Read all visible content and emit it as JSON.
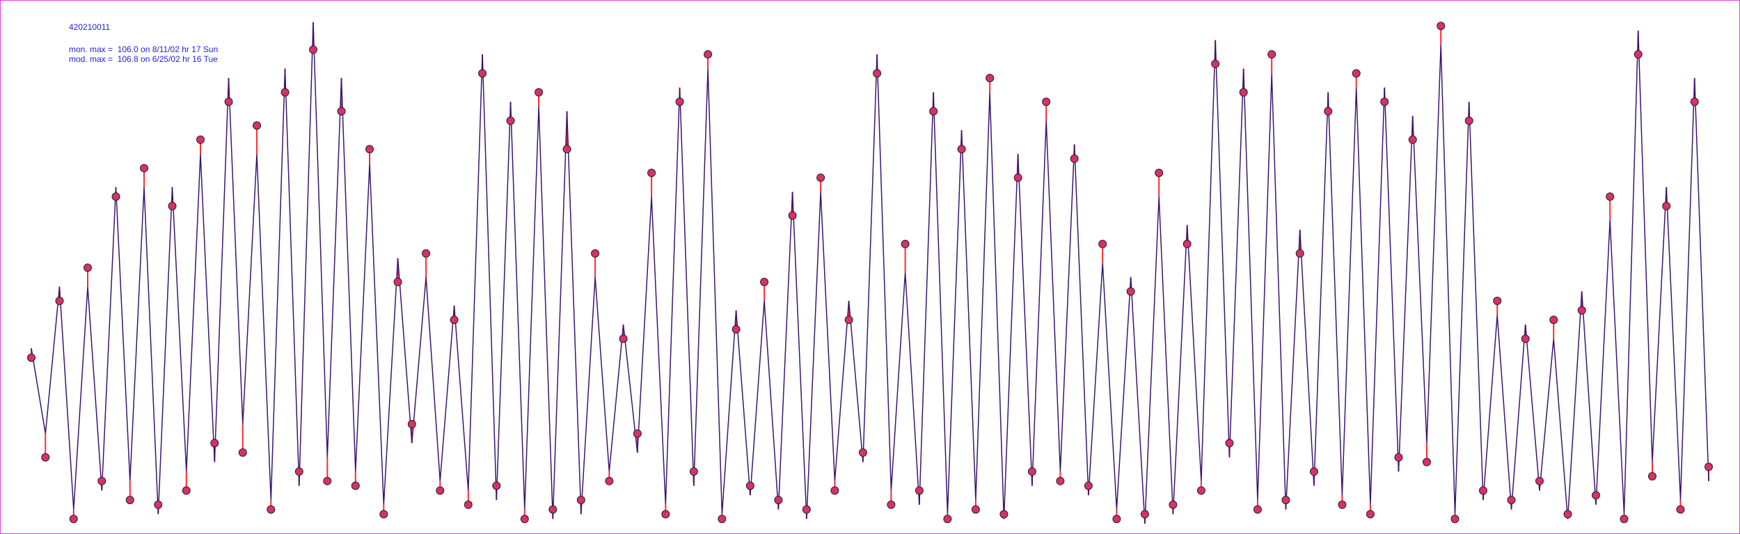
{
  "chart_data": {
    "type": "line",
    "title": "420210011",
    "annotations": [
      "mon. max =  106.0 on 8/11/02 hr 17 Sun",
      "mod. max =  106.8 on 6/25/02 hr 16 Tue"
    ],
    "ylim": [
      0,
      110
    ],
    "diff_color": "#ff2a2a",
    "series": [
      {
        "color": "#3a1470",
        "values": [
          38,
          20,
          51,
          4,
          51,
          8,
          72,
          10,
          72,
          3,
          72,
          12,
          79,
          14,
          95,
          22,
          79,
          6,
          97,
          9,
          106.8,
          15,
          95,
          12,
          77,
          5,
          57,
          18,
          53,
          10,
          47,
          8,
          100,
          6,
          90,
          4,
          89,
          2,
          88,
          3,
          53,
          12,
          43,
          16,
          70,
          5,
          93,
          9,
          97,
          3,
          46,
          7,
          48,
          4,
          71,
          2,
          71,
          10,
          48,
          14,
          100,
          8,
          54,
          5,
          92,
          3,
          84,
          6,
          92,
          2,
          79,
          9,
          86,
          12,
          81,
          7,
          56,
          4,
          53,
          1,
          70,
          3,
          64,
          10,
          103,
          15,
          97,
          6,
          96,
          4,
          63,
          9,
          92,
          7,
          93,
          5,
          93,
          12,
          87,
          18,
          102,
          3,
          90,
          6,
          45,
          4,
          43,
          8,
          40,
          2,
          50,
          5,
          65,
          3,
          105,
          14,
          72,
          6,
          95,
          10
        ]
      },
      {
        "color": "#d8306a",
        "values": [
          36,
          15,
          48,
          2,
          55,
          10,
          70,
          6,
          76,
          5,
          68,
          8,
          82,
          18,
          90,
          16,
          85,
          4,
          92,
          12,
          101,
          10,
          88,
          9,
          80,
          3,
          52,
          22,
          58,
          8,
          44,
          5,
          96,
          9,
          86,
          2,
          92,
          4,
          80,
          6,
          58,
          10,
          40,
          20,
          75,
          3,
          90,
          12,
          100,
          2,
          42,
          9,
          52,
          6,
          66,
          4,
          74,
          8,
          44,
          16,
          96,
          5,
          60,
          8,
          88,
          2,
          80,
          4,
          95,
          3,
          74,
          12,
          90,
          10,
          78,
          9,
          60,
          2,
          50,
          3,
          75,
          5,
          60,
          8,
          98,
          18,
          92,
          4,
          100,
          6,
          58,
          12,
          88,
          5,
          96,
          3,
          90,
          15,
          82,
          14,
          106.0,
          2,
          86,
          8,
          48,
          6,
          40,
          10,
          44,
          3,
          46,
          7,
          70,
          2,
          100,
          11,
          68,
          4,
          90,
          13
        ]
      }
    ]
  }
}
